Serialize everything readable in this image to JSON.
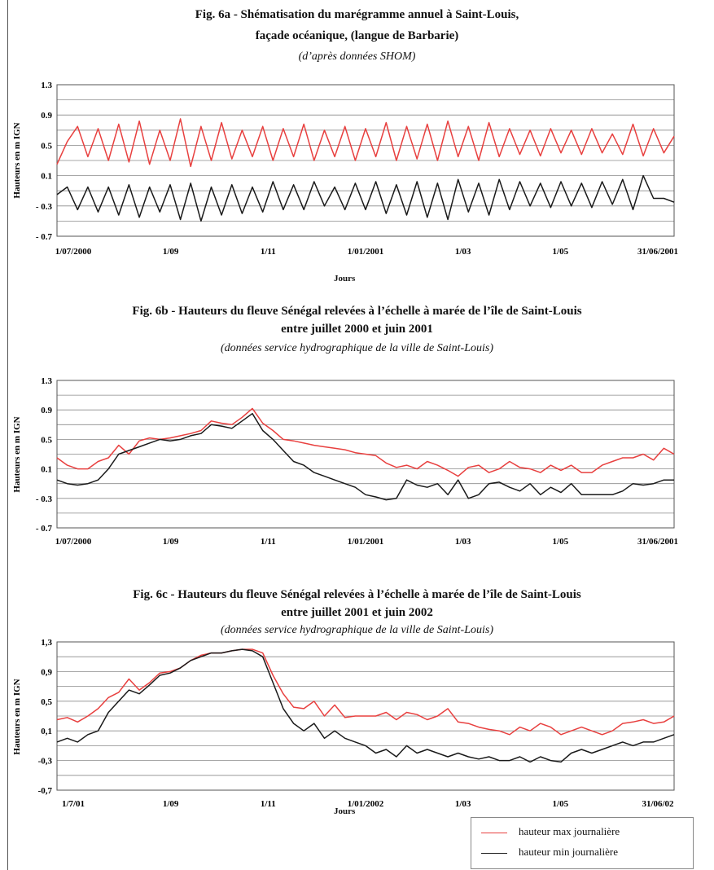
{
  "colors": {
    "max_series": "#e8403f",
    "min_series": "#1a1a1a",
    "grid": "#8a8a8a"
  },
  "figures": {
    "a": {
      "title_line1": "Fig. 6a - Shématisation du marégramme annuel à Saint-Louis,",
      "title_line2": "façade océanique, (langue de Barbarie)",
      "subtitle": "(d’après données SHOM)",
      "xlabel": "Jours"
    },
    "b": {
      "title_line1": "Fig. 6b - Hauteurs du fleuve Sénégal relevées à l’échelle à marée de l’île de Saint-Louis",
      "title_line2": "entre juillet 2000 et juin 2001",
      "subtitle": "(données service hydrographique de la ville de Saint-Louis)"
    },
    "c": {
      "title_line1": "Fig. 6c - Hauteurs du fleuve Sénégal relevées à l’échelle à marée de l’île de Saint-Louis",
      "title_line2": "entre juillet 2001 et juin 2002",
      "subtitle": "(données service hydrographique de la ville de Saint-Louis)",
      "xlabel": "Jours"
    }
  },
  "legend": {
    "max_label": "hauteur max journalière",
    "min_label": "hauteur min journalière"
  },
  "chart_data": [
    {
      "type": "line",
      "ylabel": "Hauteurs en m IGN",
      "xlabel": "Jours",
      "ylim": [
        -0.7,
        1.3
      ],
      "ytick_labels": [
        "1.3",
        "0.9",
        "0.5",
        "0.1",
        "- 0.3",
        "- 0.7"
      ],
      "xtick_labels": [
        "1/07/2000",
        "1/09",
        "1/11",
        "1/01/2001",
        "1/03",
        "1/05",
        "31/06/2001"
      ],
      "grid": true,
      "series": [
        {
          "name": "hauteur max journalière",
          "color": "#e8403f",
          "x": [
            0,
            6,
            12,
            18,
            24,
            30,
            36,
            42,
            48,
            54,
            60,
            66,
            72,
            78,
            84,
            90,
            96,
            102,
            108,
            114,
            120,
            126,
            132,
            138,
            144,
            150,
            156,
            162,
            168,
            174,
            180,
            186,
            192,
            198,
            204,
            210,
            216,
            222,
            228,
            234,
            240,
            246,
            252,
            258,
            264,
            270,
            276,
            282,
            288,
            294,
            300,
            306,
            312,
            318,
            324,
            330,
            336,
            342,
            348,
            354,
            360
          ],
          "y": [
            0.25,
            0.55,
            0.75,
            0.35,
            0.72,
            0.3,
            0.78,
            0.28,
            0.82,
            0.25,
            0.7,
            0.3,
            0.85,
            0.22,
            0.75,
            0.3,
            0.8,
            0.32,
            0.7,
            0.35,
            0.75,
            0.3,
            0.72,
            0.35,
            0.78,
            0.3,
            0.7,
            0.35,
            0.75,
            0.3,
            0.72,
            0.35,
            0.8,
            0.3,
            0.75,
            0.32,
            0.78,
            0.3,
            0.82,
            0.35,
            0.75,
            0.3,
            0.8,
            0.35,
            0.72,
            0.38,
            0.7,
            0.36,
            0.72,
            0.4,
            0.7,
            0.38,
            0.72,
            0.4,
            0.65,
            0.38,
            0.78,
            0.36,
            0.72,
            0.4,
            0.62
          ]
        },
        {
          "name": "hauteur min journalière",
          "color": "#1a1a1a",
          "x": [
            0,
            6,
            12,
            18,
            24,
            30,
            36,
            42,
            48,
            54,
            60,
            66,
            72,
            78,
            84,
            90,
            96,
            102,
            108,
            114,
            120,
            126,
            132,
            138,
            144,
            150,
            156,
            162,
            168,
            174,
            180,
            186,
            192,
            198,
            204,
            210,
            216,
            222,
            228,
            234,
            240,
            246,
            252,
            258,
            264,
            270,
            276,
            282,
            288,
            294,
            300,
            306,
            312,
            318,
            324,
            330,
            336,
            342,
            348,
            354,
            360
          ],
          "y": [
            -0.15,
            -0.05,
            -0.35,
            -0.05,
            -0.38,
            -0.05,
            -0.42,
            -0.02,
            -0.45,
            -0.05,
            -0.38,
            -0.02,
            -0.48,
            0.0,
            -0.5,
            -0.05,
            -0.42,
            -0.02,
            -0.4,
            -0.05,
            -0.38,
            0.02,
            -0.35,
            -0.02,
            -0.35,
            0.02,
            -0.3,
            -0.05,
            -0.35,
            0.0,
            -0.35,
            0.02,
            -0.4,
            -0.02,
            -0.42,
            0.02,
            -0.45,
            0.0,
            -0.48,
            0.05,
            -0.38,
            0.0,
            -0.42,
            0.05,
            -0.35,
            0.02,
            -0.3,
            0.0,
            -0.32,
            0.02,
            -0.3,
            0.0,
            -0.32,
            0.02,
            -0.28,
            0.05,
            -0.35,
            0.1,
            -0.2,
            -0.2,
            -0.25
          ]
        }
      ]
    },
    {
      "type": "line",
      "ylabel": "Hauteurs en m IGN",
      "ylim": [
        -0.7,
        1.3
      ],
      "ytick_labels": [
        "1.3",
        "0.9",
        "0.5",
        "0.1",
        "- 0.3",
        "- 0.7"
      ],
      "xtick_labels": [
        "1/07/2000",
        "1/09",
        "1/11",
        "1/01/2001",
        "1/03",
        "1/05",
        "31/06/2001"
      ],
      "grid": true,
      "series": [
        {
          "name": "hauteur max journalière",
          "color": "#e8403f",
          "x": [
            0,
            6,
            12,
            18,
            24,
            30,
            36,
            42,
            48,
            54,
            60,
            66,
            72,
            78,
            84,
            90,
            96,
            102,
            108,
            114,
            120,
            126,
            132,
            138,
            144,
            150,
            156,
            162,
            168,
            174,
            180,
            186,
            192,
            198,
            204,
            210,
            216,
            222,
            228,
            234,
            240,
            246,
            252,
            258,
            264,
            270,
            276,
            282,
            288,
            294,
            300,
            306,
            312,
            318,
            324,
            330,
            336,
            342,
            348,
            354,
            360
          ],
          "y": [
            0.25,
            0.15,
            0.1,
            0.1,
            0.2,
            0.25,
            0.42,
            0.3,
            0.48,
            0.52,
            0.5,
            0.52,
            0.55,
            0.58,
            0.62,
            0.75,
            0.72,
            0.7,
            0.8,
            0.92,
            0.72,
            0.62,
            0.5,
            0.48,
            0.45,
            0.42,
            0.4,
            0.38,
            0.36,
            0.32,
            0.3,
            0.28,
            0.18,
            0.12,
            0.15,
            0.1,
            0.2,
            0.15,
            0.08,
            0.0,
            0.12,
            0.15,
            0.05,
            0.1,
            0.2,
            0.12,
            0.1,
            0.05,
            0.15,
            0.08,
            0.15,
            0.05,
            0.05,
            0.15,
            0.2,
            0.25,
            0.25,
            0.3,
            0.22,
            0.38,
            0.3
          ]
        },
        {
          "name": "hauteur min journalière",
          "color": "#1a1a1a",
          "x": [
            0,
            6,
            12,
            18,
            24,
            30,
            36,
            42,
            48,
            54,
            60,
            66,
            72,
            78,
            84,
            90,
            96,
            102,
            108,
            114,
            120,
            126,
            132,
            138,
            144,
            150,
            156,
            162,
            168,
            174,
            180,
            186,
            192,
            198,
            204,
            210,
            216,
            222,
            228,
            234,
            240,
            246,
            252,
            258,
            264,
            270,
            276,
            282,
            288,
            294,
            300,
            306,
            312,
            318,
            324,
            330,
            336,
            342,
            348,
            354,
            360
          ],
          "y": [
            -0.05,
            -0.1,
            -0.12,
            -0.1,
            -0.05,
            0.1,
            0.3,
            0.35,
            0.4,
            0.45,
            0.5,
            0.48,
            0.5,
            0.55,
            0.58,
            0.7,
            0.68,
            0.65,
            0.75,
            0.85,
            0.62,
            0.5,
            0.35,
            0.2,
            0.15,
            0.05,
            0.0,
            -0.05,
            -0.1,
            -0.15,
            -0.25,
            -0.28,
            -0.32,
            -0.3,
            -0.05,
            -0.12,
            -0.15,
            -0.1,
            -0.25,
            -0.05,
            -0.3,
            -0.25,
            -0.1,
            -0.08,
            -0.15,
            -0.2,
            -0.1,
            -0.25,
            -0.15,
            -0.22,
            -0.1,
            -0.25,
            -0.25,
            -0.25,
            -0.25,
            -0.2,
            -0.1,
            -0.12,
            -0.1,
            -0.05,
            -0.05
          ]
        }
      ]
    },
    {
      "type": "line",
      "ylabel": "Hauteurs en m IGN",
      "xlabel": "Jours",
      "ylim": [
        -0.7,
        1.3
      ],
      "ytick_labels": [
        "1,3",
        "0,9",
        "0,5",
        "0,1",
        "-0,3",
        "-0,7"
      ],
      "xtick_labels": [
        "1/7/01",
        "1/09",
        "1/11",
        "1/01/2002",
        "1/03",
        "1/05",
        "31/06/02"
      ],
      "grid": true,
      "series": [
        {
          "name": "hauteur max journalière",
          "color": "#e8403f",
          "x": [
            0,
            6,
            12,
            18,
            24,
            30,
            36,
            42,
            48,
            54,
            60,
            66,
            72,
            78,
            84,
            90,
            96,
            102,
            108,
            114,
            120,
            126,
            132,
            138,
            144,
            150,
            156,
            162,
            168,
            174,
            180,
            186,
            192,
            198,
            204,
            210,
            216,
            222,
            228,
            234,
            240,
            246,
            252,
            258,
            264,
            270,
            276,
            282,
            288,
            294,
            300,
            306,
            312,
            318,
            324,
            330,
            336,
            342,
            348,
            354,
            360
          ],
          "y": [
            0.25,
            0.28,
            0.22,
            0.3,
            0.4,
            0.55,
            0.62,
            0.8,
            0.65,
            0.75,
            0.88,
            0.9,
            0.95,
            1.05,
            1.12,
            1.15,
            1.15,
            1.18,
            1.2,
            1.2,
            1.15,
            0.85,
            0.6,
            0.42,
            0.4,
            0.5,
            0.3,
            0.45,
            0.28,
            0.3,
            0.3,
            0.3,
            0.35,
            0.25,
            0.35,
            0.32,
            0.25,
            0.3,
            0.4,
            0.22,
            0.2,
            0.15,
            0.12,
            0.1,
            0.05,
            0.15,
            0.1,
            0.2,
            0.15,
            0.05,
            0.1,
            0.15,
            0.1,
            0.05,
            0.1,
            0.2,
            0.22,
            0.25,
            0.2,
            0.22,
            0.3
          ]
        },
        {
          "name": "hauteur min journalière",
          "color": "#1a1a1a",
          "x": [
            0,
            6,
            12,
            18,
            24,
            30,
            36,
            42,
            48,
            54,
            60,
            66,
            72,
            78,
            84,
            90,
            96,
            102,
            108,
            114,
            120,
            126,
            132,
            138,
            144,
            150,
            156,
            162,
            168,
            174,
            180,
            186,
            192,
            198,
            204,
            210,
            216,
            222,
            228,
            234,
            240,
            246,
            252,
            258,
            264,
            270,
            276,
            282,
            288,
            294,
            300,
            306,
            312,
            318,
            324,
            330,
            336,
            342,
            348,
            354,
            360
          ],
          "y": [
            -0.05,
            0.0,
            -0.05,
            0.05,
            0.1,
            0.35,
            0.5,
            0.65,
            0.6,
            0.72,
            0.85,
            0.88,
            0.95,
            1.05,
            1.1,
            1.15,
            1.15,
            1.18,
            1.2,
            1.18,
            1.1,
            0.75,
            0.4,
            0.2,
            0.1,
            0.2,
            0.0,
            0.1,
            0.0,
            -0.05,
            -0.1,
            -0.2,
            -0.15,
            -0.25,
            -0.1,
            -0.2,
            -0.15,
            -0.2,
            -0.25,
            -0.2,
            -0.25,
            -0.28,
            -0.25,
            -0.3,
            -0.3,
            -0.25,
            -0.32,
            -0.25,
            -0.3,
            -0.32,
            -0.2,
            -0.15,
            -0.2,
            -0.15,
            -0.1,
            -0.05,
            -0.1,
            -0.05,
            -0.05,
            0.0,
            0.05
          ]
        }
      ]
    }
  ]
}
